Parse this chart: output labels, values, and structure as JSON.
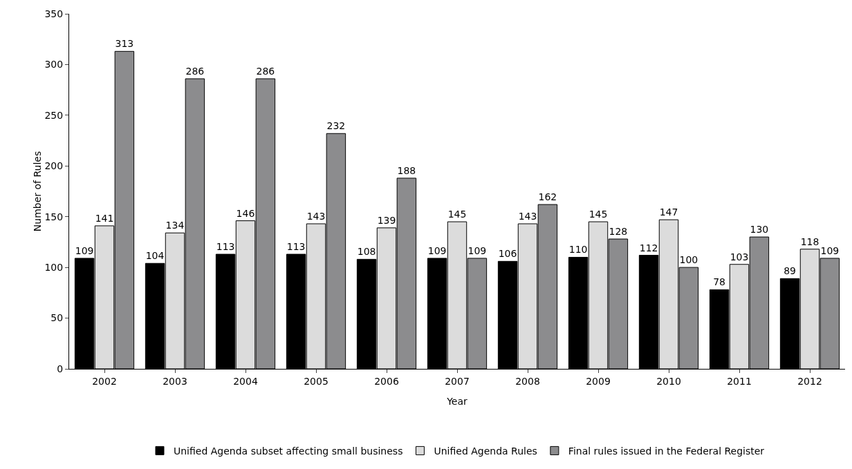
{
  "chart_data": {
    "type": "bar",
    "xlabel": "Year",
    "ylabel": "Number of Rules",
    "categories": [
      "2002",
      "2003",
      "2004",
      "2005",
      "2006",
      "2007",
      "2008",
      "2009",
      "2010",
      "2011",
      "2012"
    ],
    "series": [
      {
        "name": "Unified Agenda subset affecting small business",
        "color": "#000000",
        "values": [
          109,
          104,
          113,
          113,
          108,
          109,
          106,
          110,
          112,
          78,
          89
        ]
      },
      {
        "name": "Unified Agenda Rules",
        "color": "#dcdcdc",
        "values": [
          141,
          134,
          146,
          143,
          139,
          145,
          143,
          145,
          147,
          103,
          118
        ]
      },
      {
        "name": "Final rules issued in the Federal Register",
        "color": "#8c8c8e",
        "values": [
          313,
          286,
          286,
          232,
          188,
          109,
          162,
          128,
          100,
          130,
          109
        ]
      }
    ],
    "ylim": [
      0,
      350
    ],
    "yticks": [
      0,
      50,
      100,
      150,
      200,
      250,
      300,
      350
    ],
    "grid": false,
    "legend": "bottom",
    "data_labels": true
  }
}
